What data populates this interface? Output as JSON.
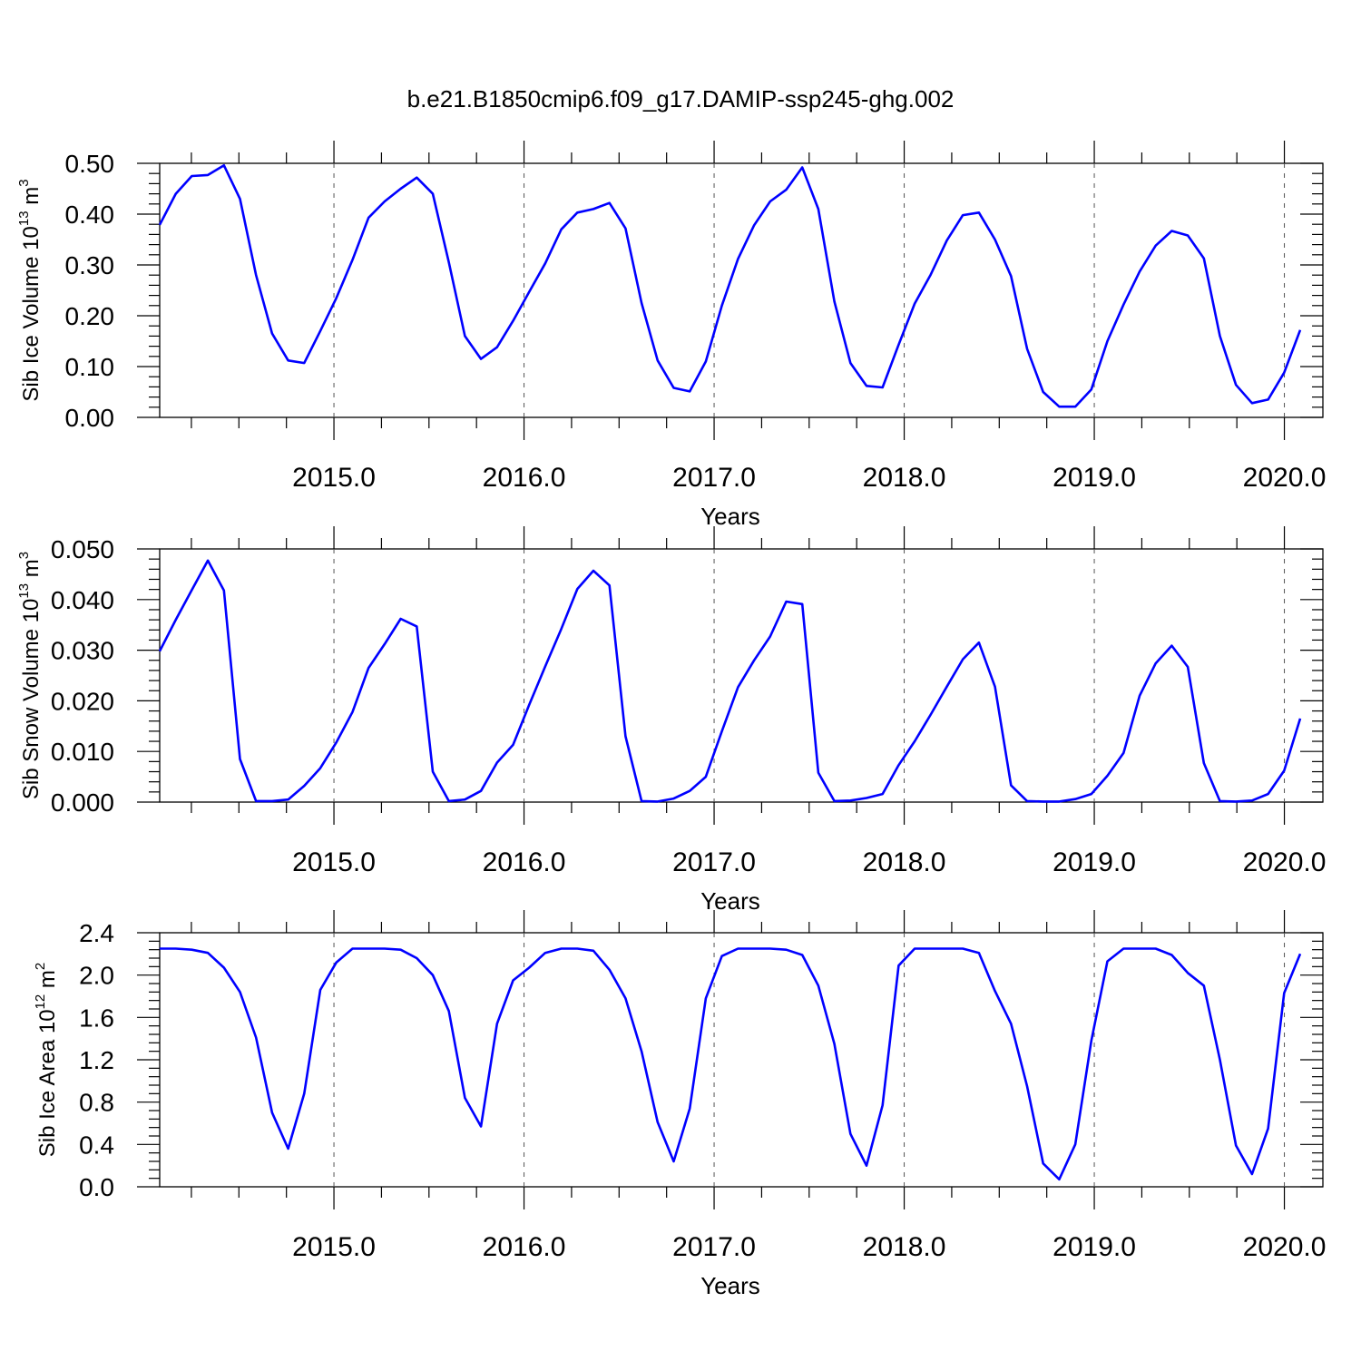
{
  "title": "b.e21.B1850cmip6.f09_g17.DAMIP-ssp245-ghg.002",
  "colors": {
    "line": "#0000ff",
    "axes": "#000000",
    "grid": "#555555",
    "background": "#ffffff"
  },
  "chart_data": [
    {
      "type": "line",
      "ylabel_text": "Sib Ice Volume 10",
      "ylabel_exp": "13",
      "ylabel_unit": " m",
      "ylabel_unit_exp": "3",
      "xlabel": "Years",
      "xlim": [
        2014.0833,
        2020.0833
      ],
      "ylim": [
        0.0,
        0.5
      ],
      "yticks": [
        0.0,
        0.1,
        0.2,
        0.3,
        0.4,
        0.5
      ],
      "ytick_labels": [
        "0.00",
        "0.10",
        "0.20",
        "0.30",
        "0.40",
        "0.50"
      ],
      "xticks": [
        2015.0,
        2016.0,
        2017.0,
        2018.0,
        2019.0,
        2020.0
      ],
      "xtick_labels": [
        "2015.0",
        "2016.0",
        "2017.0",
        "2018.0",
        "2019.0",
        "2020.0"
      ],
      "grid": "vertical dashed at major x ticks",
      "series": [
        {
          "values": [
            0.379,
            0.44,
            0.475,
            0.477,
            0.496,
            0.43,
            0.28,
            0.165,
            0.112,
            0.107,
            0.17,
            0.235,
            0.31,
            0.393,
            0.425,
            0.45,
            0.472,
            0.44,
            0.305,
            0.16,
            0.115,
            0.138,
            0.19,
            0.247,
            0.303,
            0.37,
            0.403,
            0.41,
            0.422,
            0.372,
            0.225,
            0.112,
            0.058,
            0.051,
            0.11,
            0.22,
            0.312,
            0.378,
            0.425,
            0.448,
            0.492,
            0.41,
            0.228,
            0.107,
            0.062,
            0.059,
            0.143,
            0.224,
            0.281,
            0.348,
            0.398,
            0.403,
            0.35,
            0.278,
            0.135,
            0.05,
            0.021,
            0.021,
            0.055,
            0.15,
            0.222,
            0.287,
            0.338,
            0.367,
            0.358,
            0.313,
            0.16,
            0.064,
            0.028,
            0.035,
            0.088,
            0.172
          ]
        }
      ]
    },
    {
      "type": "line",
      "ylabel_text": "Sib Snow Volume 10",
      "ylabel_exp": "13",
      "ylabel_unit": " m",
      "ylabel_unit_exp": "3",
      "xlabel": "Years",
      "xlim": [
        2014.0833,
        2020.0833
      ],
      "ylim": [
        0.0,
        0.05
      ],
      "yticks": [
        0.0,
        0.01,
        0.02,
        0.03,
        0.04,
        0.05
      ],
      "ytick_labels": [
        "0.000",
        "0.010",
        "0.020",
        "0.030",
        "0.040",
        "0.050"
      ],
      "xticks": [
        2015.0,
        2016.0,
        2017.0,
        2018.0,
        2019.0,
        2020.0
      ],
      "xtick_labels": [
        "2015.0",
        "2016.0",
        "2017.0",
        "2018.0",
        "2019.0",
        "2020.0"
      ],
      "grid": "vertical dashed at major x ticks",
      "series": [
        {
          "values": [
            0.0298,
            0.036,
            0.0419,
            0.0477,
            0.0418,
            0.0085,
            0.0002,
            0.0002,
            0.0005,
            0.0032,
            0.0067,
            0.0118,
            0.0178,
            0.0265,
            0.0312,
            0.0362,
            0.0347,
            0.006,
            0.0002,
            0.0005,
            0.0022,
            0.0078,
            0.0113,
            0.0192,
            0.0268,
            0.0342,
            0.0421,
            0.0457,
            0.0428,
            0.013,
            0.0002,
            0.0001,
            0.0007,
            0.0022,
            0.005,
            0.014,
            0.0227,
            0.028,
            0.0327,
            0.0396,
            0.0391,
            0.0058,
            0.0002,
            0.0003,
            0.0008,
            0.0016,
            0.0073,
            0.012,
            0.0173,
            0.0228,
            0.0282,
            0.0315,
            0.0228,
            0.0033,
            0.0002,
            0.0001,
            0.0001,
            0.0006,
            0.0016,
            0.0052,
            0.0097,
            0.021,
            0.0274,
            0.0309,
            0.0267,
            0.0077,
            0.0002,
            0.0001,
            0.0003,
            0.0016,
            0.0062,
            0.0165
          ]
        }
      ]
    },
    {
      "type": "line",
      "ylabel_text": "Sib Ice Area 10",
      "ylabel_exp": "12",
      "ylabel_unit": " m",
      "ylabel_unit_exp": "2",
      "xlabel": "Years",
      "xlim": [
        2014.0833,
        2020.0833
      ],
      "ylim": [
        0.0,
        2.4
      ],
      "yticks": [
        0.0,
        0.4,
        0.8,
        1.2,
        1.6,
        2.0,
        2.4
      ],
      "ytick_labels": [
        "0.0",
        "0.4",
        "0.8",
        "1.2",
        "1.6",
        "2.0",
        "2.4"
      ],
      "xticks": [
        2015.0,
        2016.0,
        2017.0,
        2018.0,
        2019.0,
        2020.0
      ],
      "xtick_labels": [
        "2015.0",
        "2016.0",
        "2017.0",
        "2018.0",
        "2019.0",
        "2020.0"
      ],
      "grid": "vertical dashed at major x ticks",
      "series": [
        {
          "values": [
            2.25,
            2.25,
            2.24,
            2.21,
            2.07,
            1.84,
            1.41,
            0.7,
            0.36,
            0.88,
            1.86,
            2.12,
            2.25,
            2.25,
            2.25,
            2.24,
            2.16,
            2.0,
            1.66,
            0.84,
            0.57,
            1.54,
            1.95,
            2.07,
            2.21,
            2.25,
            2.25,
            2.23,
            2.05,
            1.78,
            1.28,
            0.61,
            0.24,
            0.74,
            1.78,
            2.18,
            2.25,
            2.25,
            2.25,
            2.24,
            2.19,
            1.9,
            1.35,
            0.5,
            0.2,
            0.77,
            2.09,
            2.25,
            2.25,
            2.25,
            2.25,
            2.21,
            1.85,
            1.54,
            0.95,
            0.22,
            0.07,
            0.4,
            1.38,
            2.13,
            2.25,
            2.25,
            2.25,
            2.19,
            2.02,
            1.9,
            1.2,
            0.39,
            0.12,
            0.55,
            1.83,
            2.2
          ]
        }
      ]
    }
  ]
}
